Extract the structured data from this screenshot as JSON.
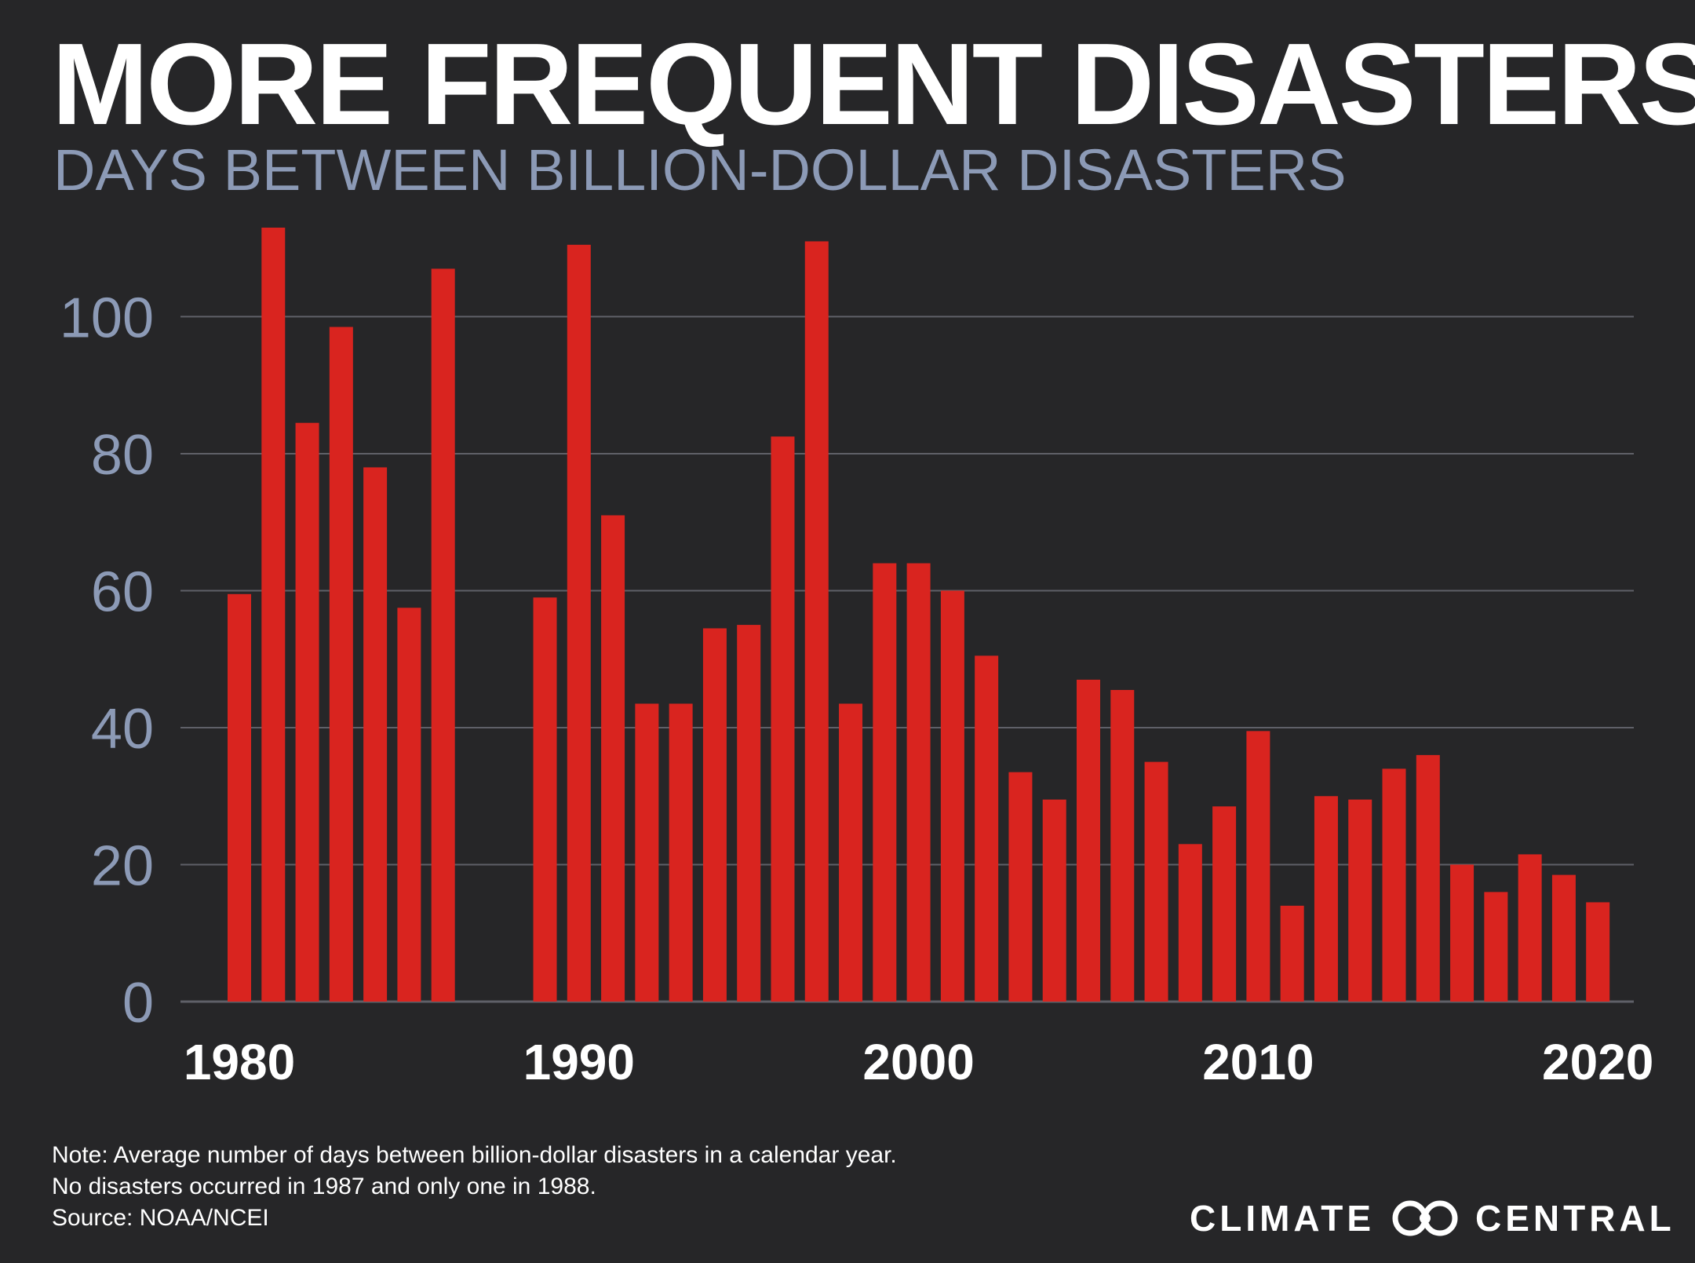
{
  "title": "MORE FREQUENT DISASTERS",
  "subtitle": "DAYS BETWEEN BILLION-DOLLAR DISASTERS",
  "notes": [
    "Note: Average number of days between billion-dollar disasters in a calendar year.",
    "No disasters occurred in 1987 and only one in 1988.",
    "Source:  NOAA/NCEI"
  ],
  "brand": {
    "left_text": "CLIMATE",
    "right_text": "CENTRAL",
    "logo_icon": "climate-central-logo-icon"
  },
  "colors": {
    "background": "#262628",
    "bar": "#d9241f",
    "axis_text": "#8c9ab6",
    "gridline": "#5f6068",
    "year_label": "#ffffff"
  },
  "chart_data": {
    "type": "bar",
    "title": "MORE FREQUENT DISASTERS",
    "subtitle": "DAYS BETWEEN BILLION-DOLLAR DISASTERS",
    "xlabel": "",
    "ylabel": "",
    "ylim": [
      0,
      113
    ],
    "yticks": [
      0,
      20,
      40,
      60,
      80,
      100
    ],
    "xticks": [
      1980,
      1990,
      2000,
      2010,
      2020
    ],
    "grid": true,
    "legend": "none",
    "x": [
      1980,
      1981,
      1982,
      1983,
      1984,
      1985,
      1986,
      1987,
      1988,
      1989,
      1990,
      1991,
      1992,
      1993,
      1994,
      1995,
      1996,
      1997,
      1998,
      1999,
      2000,
      2001,
      2002,
      2003,
      2004,
      2005,
      2006,
      2007,
      2008,
      2009,
      2010,
      2011,
      2012,
      2013,
      2014,
      2015,
      2016,
      2017,
      2018,
      2019,
      2020,
      2021
    ],
    "values": [
      59.5,
      113,
      84.5,
      98.5,
      78,
      57.5,
      107,
      null,
      null,
      59,
      110.5,
      71,
      43.5,
      43.5,
      54.5,
      55,
      82.5,
      111,
      43.5,
      64,
      64,
      60,
      50.5,
      33.5,
      29.5,
      47,
      45.5,
      35,
      23,
      28.5,
      39.5,
      14,
      30,
      29.5,
      34,
      36,
      20,
      16,
      21.5,
      18.5,
      14.5,
      null
    ]
  }
}
